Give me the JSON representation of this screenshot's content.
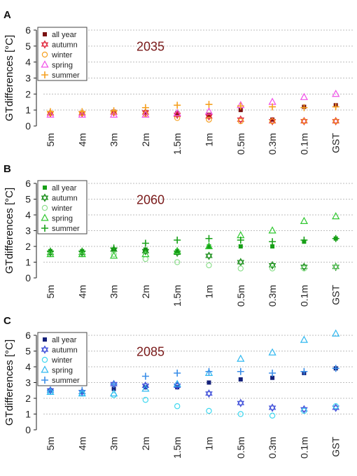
{
  "chart_data": [
    {
      "panel_letter": "A",
      "type": "scatter",
      "year_label": "2035",
      "ylabel": "GTdifferences [°C]",
      "categories": [
        "5m",
        "4m",
        "3m",
        "2m",
        "1.5m",
        "1m",
        "0.5m",
        "0.3m",
        "0.1m",
        "GST"
      ],
      "ylim": [
        0,
        6
      ],
      "yticks": [
        0,
        1,
        2,
        3,
        4,
        5,
        6
      ],
      "grid": "dotted horizontal",
      "legend_position": "top-left",
      "series": [
        {
          "name": "all year",
          "marker": "square",
          "color": "#7a1010",
          "values": [
            0.8,
            0.8,
            0.9,
            0.85,
            0.8,
            0.7,
            1.0,
            0.4,
            1.2,
            1.3
          ]
        },
        {
          "name": "autumn",
          "marker": "star",
          "color": "#e0243a",
          "values": [
            0.8,
            0.8,
            0.85,
            0.85,
            0.7,
            0.6,
            0.4,
            0.3,
            0.3,
            0.3
          ]
        },
        {
          "name": "winter",
          "marker": "circle",
          "color": "#f5a020",
          "values": [
            0.8,
            0.8,
            0.85,
            0.75,
            0.5,
            0.4,
            0.3,
            0.3,
            0.3,
            0.3
          ]
        },
        {
          "name": "spring",
          "marker": "triangle",
          "color": "#f050e8",
          "values": [
            0.7,
            0.7,
            0.7,
            0.7,
            0.8,
            0.9,
            1.3,
            1.5,
            1.8,
            2.0
          ]
        },
        {
          "name": "summer",
          "marker": "plus",
          "color": "#f5a020",
          "values": [
            0.9,
            0.9,
            0.95,
            1.15,
            1.3,
            1.35,
            1.25,
            1.2,
            1.15,
            1.2
          ]
        }
      ]
    },
    {
      "panel_letter": "B",
      "type": "scatter",
      "year_label": "2060",
      "ylabel": "GTdifferences [°C]",
      "categories": [
        "5m",
        "4m",
        "3m",
        "2m",
        "1.5m",
        "1m",
        "0.5m",
        "0.3m",
        "0.1m",
        "GST"
      ],
      "ylim": [
        0,
        6
      ],
      "yticks": [
        0,
        1,
        2,
        3,
        4,
        5,
        6
      ],
      "grid": "dotted horizontal",
      "legend_position": "top-left",
      "series": [
        {
          "name": "all year",
          "marker": "square",
          "color": "#18a018",
          "values": [
            1.7,
            1.7,
            1.8,
            1.8,
            1.7,
            2.0,
            2.0,
            2.0,
            2.3,
            2.5
          ]
        },
        {
          "name": "autumn",
          "marker": "star",
          "color": "#128a12",
          "values": [
            1.6,
            1.6,
            1.8,
            1.7,
            1.6,
            1.4,
            1.0,
            0.8,
            0.7,
            0.7
          ]
        },
        {
          "name": "winter",
          "marker": "circle",
          "color": "#8fe08f",
          "values": [
            1.5,
            1.5,
            1.5,
            1.2,
            1.0,
            0.8,
            0.6,
            0.6,
            0.6,
            0.7
          ]
        },
        {
          "name": "spring",
          "marker": "triangle",
          "color": "#30c830",
          "values": [
            1.5,
            1.5,
            1.4,
            1.5,
            1.7,
            2.0,
            2.7,
            3.0,
            3.6,
            3.9
          ]
        },
        {
          "name": "summer",
          "marker": "plus",
          "color": "#18a018",
          "values": [
            1.7,
            1.7,
            1.9,
            2.2,
            2.4,
            2.5,
            2.4,
            2.3,
            2.4,
            2.5
          ]
        }
      ]
    },
    {
      "panel_letter": "C",
      "type": "scatter",
      "year_label": "2085",
      "ylabel": "GTdifferences [°C]",
      "categories": [
        "5m",
        "4m",
        "3m",
        "2m",
        "1.5m",
        "1m",
        "0.5m",
        "0.3m",
        "0.1m",
        "GST"
      ],
      "ylim": [
        0,
        6
      ],
      "yticks": [
        0,
        1,
        2,
        3,
        4,
        5,
        6
      ],
      "grid": "dotted horizontal",
      "legend_position": "top-left",
      "series": [
        {
          "name": "all year",
          "marker": "square",
          "color": "#14207a",
          "values": [
            2.5,
            2.4,
            2.6,
            2.7,
            2.7,
            3.0,
            3.2,
            3.3,
            3.6,
            3.9
          ]
        },
        {
          "name": "autumn",
          "marker": "star",
          "color": "#3a4ad8",
          "values": [
            2.5,
            2.4,
            2.9,
            2.8,
            2.8,
            2.3,
            1.7,
            1.4,
            1.3,
            1.4
          ]
        },
        {
          "name": "winter",
          "marker": "circle",
          "color": "#40d8f0",
          "values": [
            2.4,
            2.3,
            2.2,
            1.9,
            1.5,
            1.2,
            1.0,
            0.9,
            1.2,
            1.5
          ]
        },
        {
          "name": "spring",
          "marker": "triangle",
          "color": "#30b8f0",
          "values": [
            2.4,
            2.3,
            2.3,
            2.6,
            2.9,
            3.6,
            4.5,
            4.9,
            5.7,
            6.1
          ]
        },
        {
          "name": "summer",
          "marker": "plus",
          "color": "#3a8ee8",
          "values": [
            2.5,
            2.5,
            2.9,
            3.4,
            3.6,
            3.7,
            3.7,
            3.6,
            3.7,
            3.9
          ]
        }
      ]
    }
  ]
}
